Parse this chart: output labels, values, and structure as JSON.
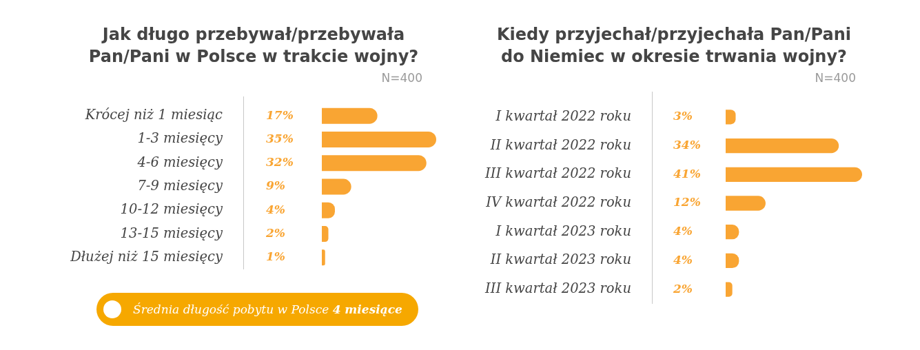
{
  "chart_data": [
    {
      "type": "bar",
      "orientation": "horizontal",
      "title": "Jak długo przebywał/przebywała Pan/Pani w Polsce w trakcie wojny?",
      "annotations": [
        "N=400",
        "Średnia długość pobytu w Polsce 4 miesiące"
      ],
      "categories": [
        "Krócej niż 1 miesiąc",
        "1-3 miesięcy",
        "4-6 miesięcy",
        "7-9 miesięcy",
        "10-12 miesięcy",
        "13-15 miesięcy",
        "Dłużej niż 15 miesięcy"
      ],
      "values": [
        17,
        35,
        32,
        9,
        4,
        2,
        1
      ],
      "value_labels": [
        "17%",
        "35%",
        "32%",
        "9%",
        "4%",
        "2%",
        "1%"
      ],
      "color": "#f9a533",
      "tick_labels": "y"
    },
    {
      "type": "bar",
      "orientation": "horizontal",
      "title": "Kiedy przyjechał/przyjechała Pan/Pani do Niemiec w okresie trwania wojny?",
      "annotations": [
        "N=400"
      ],
      "categories": [
        "I kwartał 2022 roku",
        "II kwartał 2022 roku",
        "III kwartał 2022 roku",
        "IV kwartał 2022 roku",
        "I kwartał 2023 roku",
        "II kwartał 2023 roku",
        "III kwartał 2023 roku"
      ],
      "values": [
        3,
        34,
        41,
        12,
        4,
        4,
        2
      ],
      "value_labels": [
        "3%",
        "34%",
        "41%",
        "12%",
        "4%",
        "4%",
        "2%"
      ],
      "color": "#f9a533",
      "tick_labels": "y"
    }
  ]
}
